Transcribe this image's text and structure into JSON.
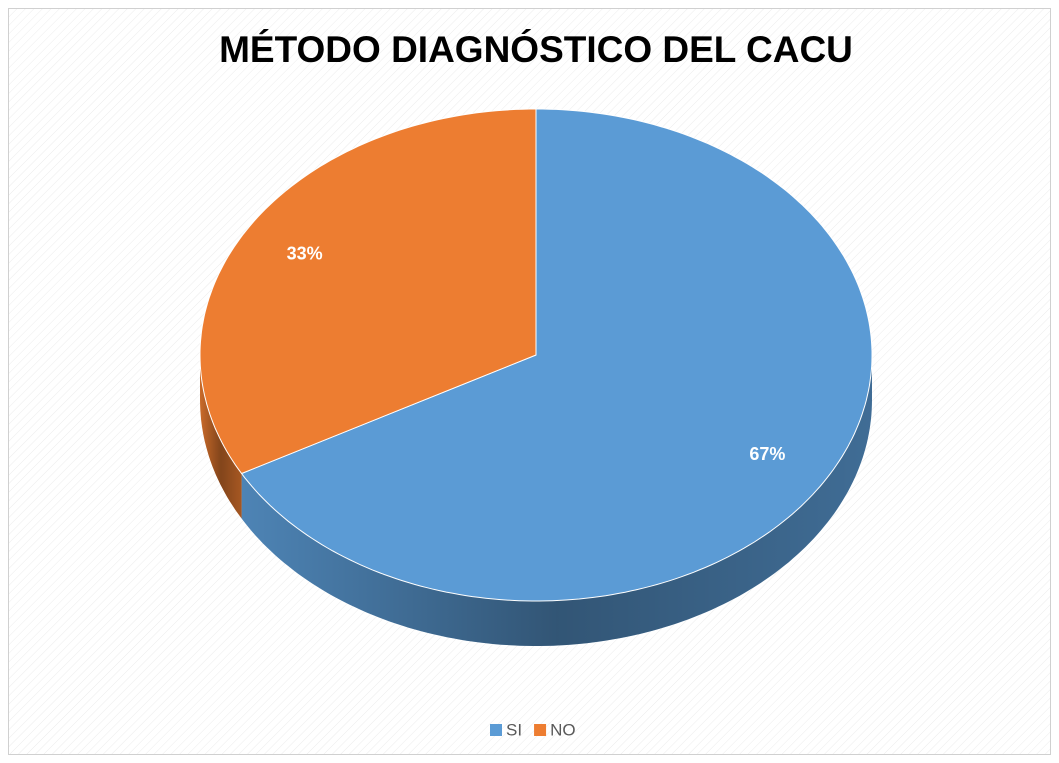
{
  "chart_data": {
    "type": "pie",
    "title": "MÉTODO DIAGNÓSTICO DEL CACU",
    "categories": [
      "SI",
      "NO"
    ],
    "values": [
      67,
      33
    ],
    "value_labels": [
      "67%",
      "33%"
    ],
    "colors": [
      "#5b9bd5",
      "#ed7d31"
    ],
    "legend": "bottom"
  }
}
